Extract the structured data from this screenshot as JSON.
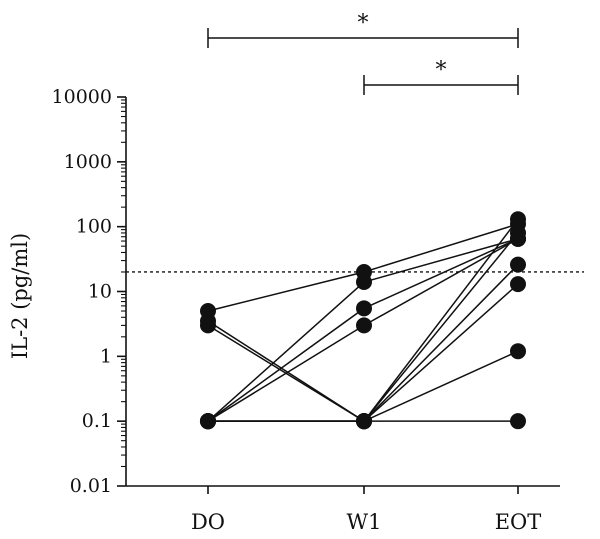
{
  "chart_data": {
    "type": "line",
    "title": "",
    "xlabel": "",
    "ylabel": "IL-2 (pg/ml)",
    "y_scale": "log",
    "ylim": [
      0.01,
      10000
    ],
    "y_ticks": [
      "0.01",
      "0.1",
      "1",
      "10",
      "100",
      "1000",
      "10000"
    ],
    "categories": [
      "DO",
      "W1",
      "EOT"
    ],
    "series": [
      {
        "values": [
          5,
          20,
          110
        ]
      },
      {
        "values": [
          3,
          0.1,
          80
        ]
      },
      {
        "values": [
          3.5,
          0.1,
          130
        ]
      },
      {
        "values": [
          0.1,
          14,
          65
        ]
      },
      {
        "values": [
          0.1,
          5.5,
          65
        ]
      },
      {
        "values": [
          0.1,
          3,
          65
        ]
      },
      {
        "values": [
          0.1,
          0.1,
          26
        ]
      },
      {
        "values": [
          0.1,
          0.1,
          13
        ]
      },
      {
        "values": [
          0.1,
          0.1,
          1.2
        ]
      },
      {
        "values": [
          0.1,
          0.1,
          0.1
        ]
      }
    ],
    "reference_line": {
      "y": 20,
      "style": "dotted"
    },
    "significance": [
      {
        "from": "DO",
        "to": "EOT",
        "label": "*"
      },
      {
        "from": "W1",
        "to": "EOT",
        "label": "*"
      }
    ],
    "grid": false,
    "legend": "none"
  }
}
